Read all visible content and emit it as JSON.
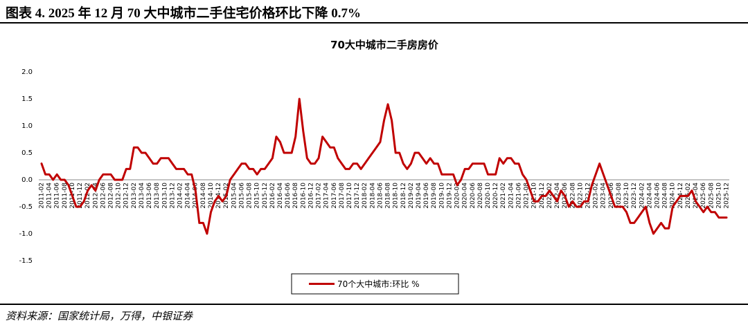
{
  "header": {
    "title": "图表 4. 2025 年 12 月 70 大中城市二手住宅价格环比下降 0.7%"
  },
  "chart_data": {
    "type": "line",
    "title": "70大中城市二手房房价",
    "categories": [
      "2011-02",
      null,
      "2011-04",
      null,
      "2011-06",
      null,
      "2011-08",
      null,
      "2011-10",
      null,
      "2011-12",
      null,
      "2012-02",
      null,
      "2012-04",
      null,
      "2012-06",
      null,
      "2012-08",
      null,
      "2012-10",
      null,
      "2012-12",
      null,
      "2013-02",
      null,
      "2013-04",
      null,
      "2013-06",
      null,
      "2013-08",
      null,
      "2013-10",
      null,
      "2013-12",
      null,
      "2014-02",
      null,
      "2014-04",
      null,
      "2014-06",
      null,
      "2014-08",
      null,
      "2014-10",
      null,
      "2014-12",
      null,
      "2015-02",
      null,
      "2015-04",
      null,
      "2015-06",
      null,
      "2015-08",
      null,
      "2015-10",
      null,
      "2015-12",
      null,
      "2016-02",
      null,
      "2016-04",
      null,
      "2016-06",
      null,
      "2016-08",
      null,
      "2016-10",
      null,
      "2016-12",
      null,
      "2017-02",
      null,
      "2017-04",
      null,
      "2017-06",
      null,
      "2017-08",
      null,
      "2017-10",
      null,
      "2017-12",
      null,
      "2018-02",
      null,
      "2018-04",
      null,
      "2018-06",
      null,
      "2018-08",
      null,
      "2018-10",
      null,
      "2018-12",
      null,
      "2019-02",
      null,
      "2019-04",
      null,
      "2019-06",
      null,
      "2019-08",
      null,
      "2019-10",
      null,
      "2019-12",
      null,
      "2020-02",
      null,
      "2020-04",
      null,
      "2020-06",
      null,
      "2020-08",
      null,
      "2020-10",
      null,
      "2020-12",
      null,
      "2021-02",
      null,
      "2021-04",
      null,
      "2021-06",
      null,
      "2021-08",
      null,
      "2021-10",
      null,
      "2021-12",
      null,
      "2022-02",
      null,
      "2022-04",
      null,
      "2022-06",
      null,
      "2022-08",
      null,
      "2022-10",
      null,
      "2022-12",
      null,
      "2023-02",
      null,
      "2023-04",
      null,
      "2023-06",
      null,
      "2023-08",
      null,
      "2023-10",
      null,
      "2023-12",
      null,
      "2024-02",
      null,
      "2024-04",
      null,
      "2024-06",
      null,
      "2024-08",
      null,
      "2024-10",
      null,
      "2024-12",
      null,
      "2025-02",
      null,
      "2025-04",
      null,
      "2025-06",
      null,
      "2025-08",
      null,
      "2025-10",
      null,
      "2025-12"
    ],
    "series": [
      {
        "name": "70个大中城市:环比 %",
        "color": "#c00000",
        "values": [
          0.3,
          0.1,
          0.1,
          0.0,
          0.1,
          0.0,
          0.0,
          -0.1,
          -0.3,
          -0.5,
          -0.5,
          -0.4,
          -0.2,
          -0.1,
          -0.2,
          0.0,
          0.1,
          0.1,
          0.1,
          0.0,
          0.0,
          0.0,
          0.2,
          0.2,
          0.6,
          0.6,
          0.5,
          0.5,
          0.4,
          0.3,
          0.3,
          0.4,
          0.4,
          0.4,
          0.3,
          0.2,
          0.2,
          0.2,
          0.1,
          0.1,
          -0.2,
          -0.8,
          -0.8,
          -1.0,
          -0.6,
          -0.4,
          -0.3,
          -0.4,
          -0.3,
          0.0,
          0.1,
          0.2,
          0.3,
          0.3,
          0.2,
          0.2,
          0.1,
          0.2,
          0.2,
          0.3,
          0.4,
          0.8,
          0.7,
          0.5,
          0.5,
          0.5,
          0.8,
          1.5,
          0.9,
          0.4,
          0.3,
          0.3,
          0.4,
          0.8,
          0.7,
          0.6,
          0.6,
          0.4,
          0.3,
          0.2,
          0.2,
          0.3,
          0.3,
          0.2,
          0.3,
          0.4,
          0.5,
          0.6,
          0.7,
          1.1,
          1.4,
          1.1,
          0.5,
          0.5,
          0.3,
          0.2,
          0.3,
          0.5,
          0.5,
          0.4,
          0.3,
          0.4,
          0.3,
          0.3,
          0.1,
          0.1,
          0.1,
          0.1,
          -0.1,
          0.0,
          0.2,
          0.2,
          0.3,
          0.3,
          0.3,
          0.3,
          0.1,
          0.1,
          0.1,
          0.4,
          0.3,
          0.4,
          0.4,
          0.3,
          0.3,
          0.1,
          0.0,
          -0.2,
          -0.4,
          -0.4,
          -0.3,
          -0.3,
          -0.2,
          -0.3,
          -0.4,
          -0.2,
          -0.3,
          -0.5,
          -0.4,
          -0.5,
          -0.5,
          -0.4,
          -0.4,
          -0.1,
          0.1,
          0.3,
          0.1,
          -0.1,
          -0.3,
          -0.5,
          -0.5,
          -0.5,
          -0.6,
          -0.8,
          -0.8,
          -0.7,
          -0.6,
          -0.5,
          -0.8,
          -1.0,
          -0.9,
          -0.8,
          -0.9,
          -0.9,
          -0.5,
          -0.4,
          -0.3,
          -0.3,
          -0.3,
          -0.2,
          -0.4,
          -0.5,
          -0.6,
          -0.5,
          -0.6,
          -0.6,
          -0.7,
          -0.7,
          -0.7
        ]
      }
    ],
    "ylim": [
      -1.5,
      2.0
    ],
    "yticks": [
      -1.5,
      {
        "value": -1,
        "label": "-1.0"
      },
      -0.5,
      {
        "value": 0,
        "label": "0.0"
      },
      0.5,
      {
        "value": 1,
        "label": "1.0"
      },
      1.5,
      {
        "value": 2,
        "label": "2.0"
      }
    ],
    "grid": false,
    "legend": "bottom"
  },
  "source": "资料来源：国家统计局，万得，中银证券"
}
